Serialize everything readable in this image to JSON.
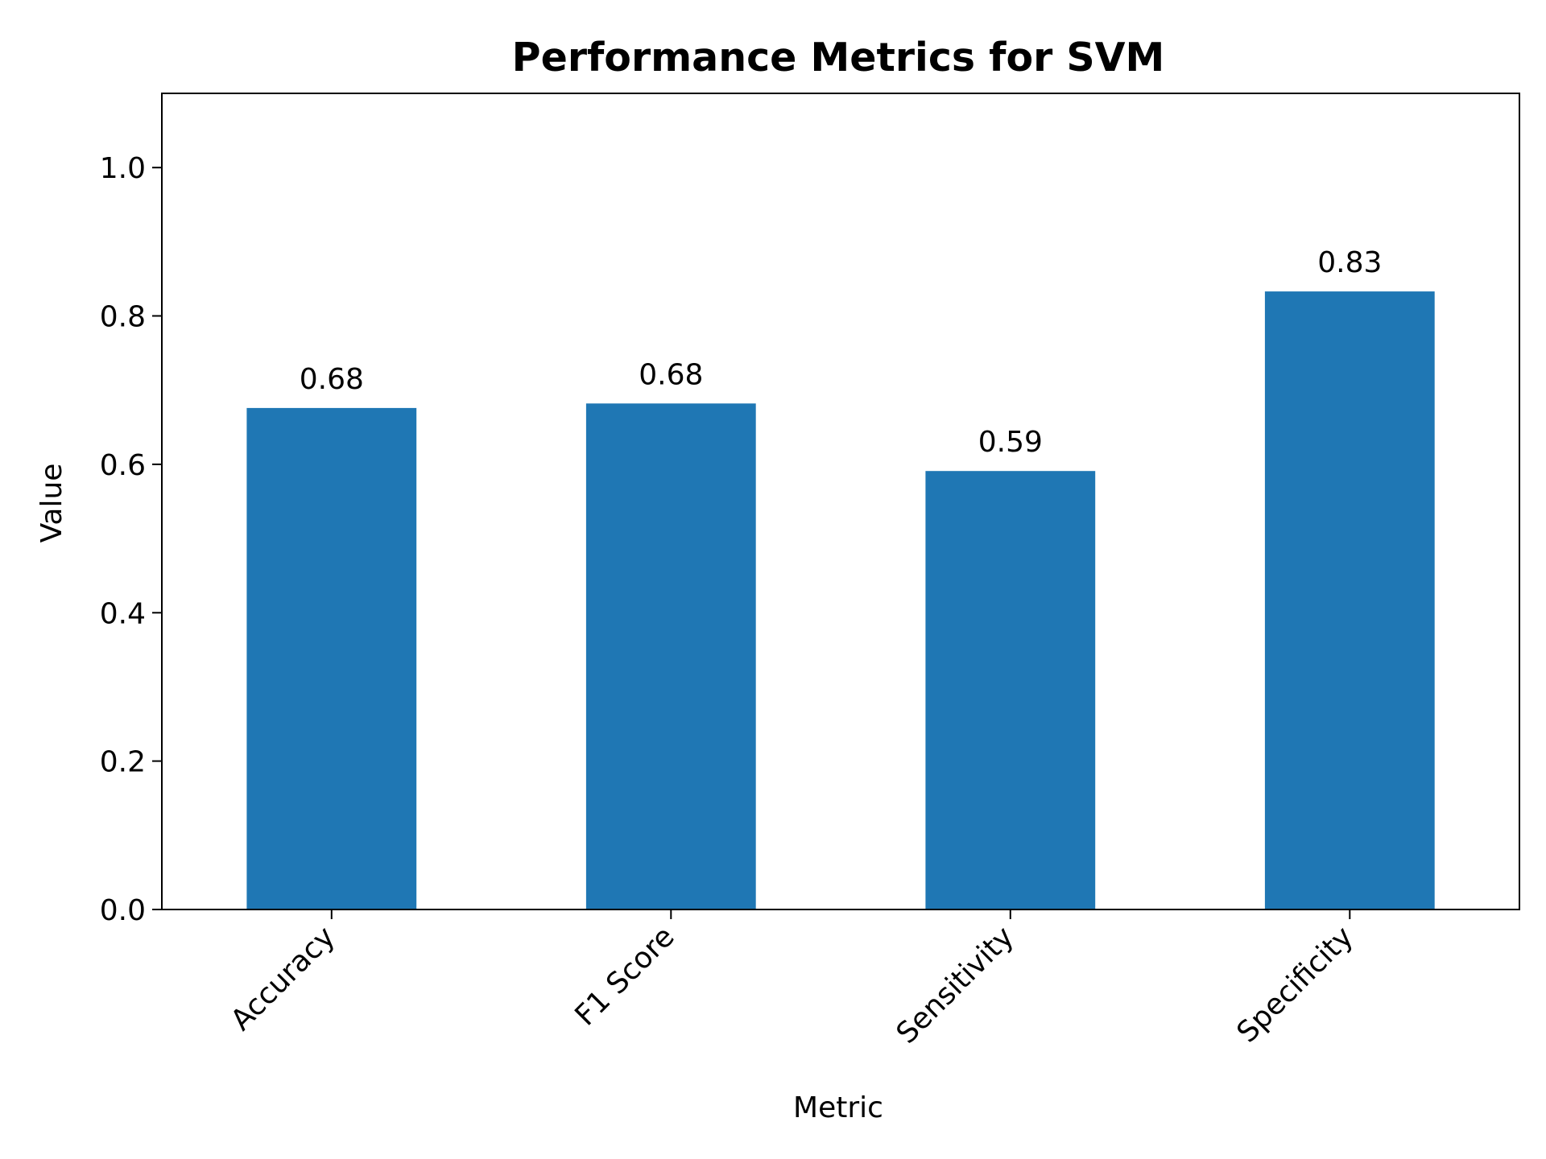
{
  "chart_data": {
    "type": "bar",
    "title": "Performance Metrics for SVM",
    "xlabel": "Metric",
    "ylabel": "Value",
    "categories": [
      "Accuracy",
      "F1 Score",
      "Sensitivity",
      "Specificity"
    ],
    "values": [
      0.676,
      0.682,
      0.591,
      0.833
    ],
    "data_labels": [
      "0.68",
      "0.68",
      "0.59",
      "0.83"
    ],
    "ylim": [
      0,
      1.1
    ],
    "yticks": [
      0.0,
      0.2,
      0.4,
      0.6,
      0.8,
      1.0
    ],
    "ytick_labels": [
      "0.0",
      "0.2",
      "0.4",
      "0.6",
      "0.8",
      "1.0"
    ],
    "xtick_rotation": 45,
    "grid": false,
    "legend": "none",
    "bar_color": "#1f77b4"
  }
}
